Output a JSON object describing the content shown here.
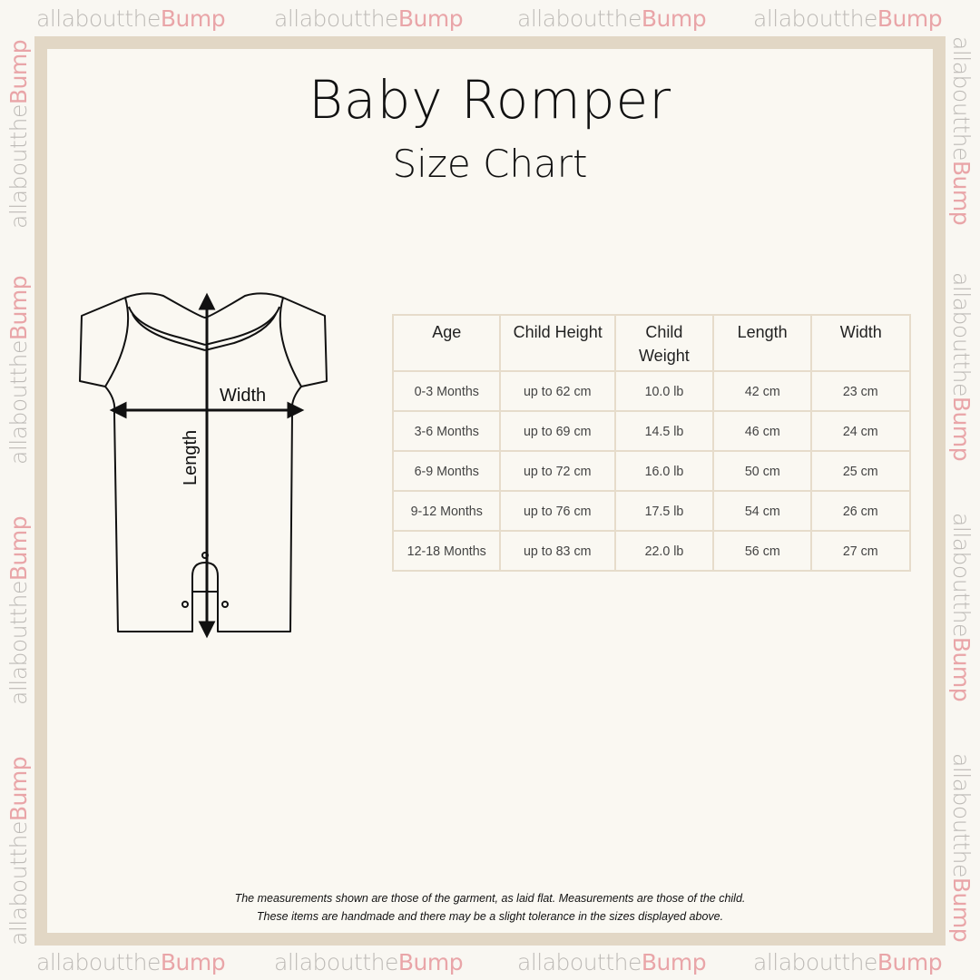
{
  "watermark": {
    "text_a": "allaboutthe",
    "text_b": "Bump"
  },
  "title": "Baby Romper",
  "subtitle": "Size Chart",
  "diagram": {
    "width_label": "Width",
    "length_label": "Length"
  },
  "table": {
    "headers": [
      "Age",
      "Child Height",
      "Child Weight",
      "Length",
      "Width"
    ],
    "rows": [
      [
        "0-3 Months",
        "up to 62 cm",
        "10.0 lb",
        "42 cm",
        "23 cm"
      ],
      [
        "3-6 Months",
        "up to 69 cm",
        "14.5 lb",
        "46 cm",
        "24 cm"
      ],
      [
        "6-9 Months",
        "up to 72 cm",
        "16.0 lb",
        "50 cm",
        "25 cm"
      ],
      [
        "9-12 Months",
        "up to 76 cm",
        "17.5 lb",
        "54 cm",
        "26 cm"
      ],
      [
        "12-18 Months",
        "up to 83 cm",
        "22.0 lb",
        "56 cm",
        "27 cm"
      ]
    ]
  },
  "note": {
    "line1": "The measurements shown are those of the garment, as laid flat. Measurements are those of the child.",
    "line2": "These items are handmade and there may be a slight tolerance in the sizes displayed above."
  },
  "colors": {
    "frame": "#e2d7c5",
    "background": "#faf8f2",
    "accent": "#e9a5a8"
  }
}
